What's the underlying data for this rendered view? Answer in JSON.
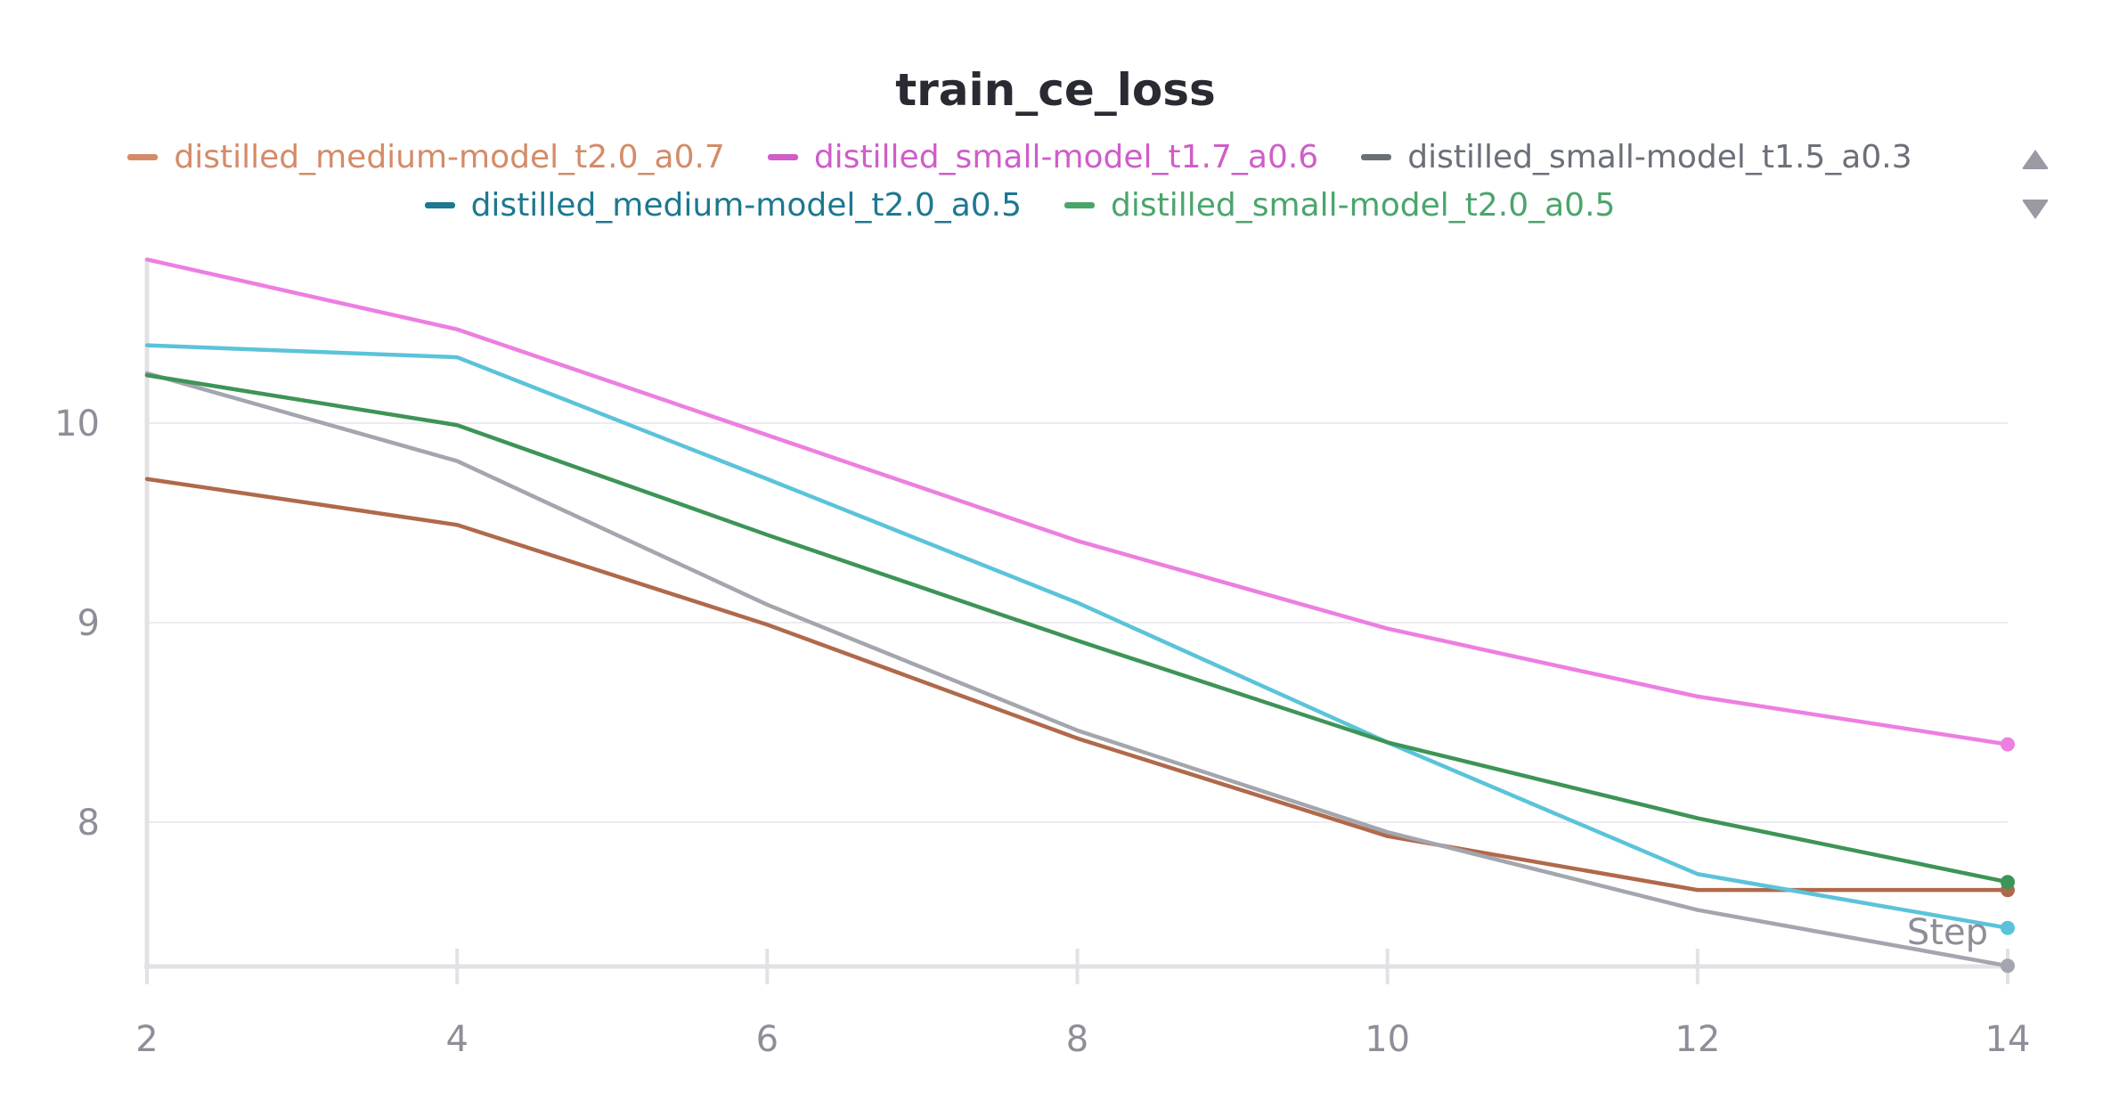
{
  "chart_data": {
    "type": "line",
    "title": "train_ce_loss",
    "xlabel": "Step",
    "ylabel": "",
    "xlim": [
      2,
      14
    ],
    "ylim": [
      7.28,
      10.82
    ],
    "x_ticks": [
      2,
      4,
      6,
      8,
      10,
      12,
      14
    ],
    "y_ticks": [
      8,
      9,
      10
    ],
    "grid": true,
    "legend_placement": "top",
    "series": [
      {
        "name": "distilled_medium-model_t2.0_a0.7",
        "color": "#b0694a",
        "legend_color": "#d48b68",
        "x": [
          2,
          4,
          6,
          8,
          10,
          12,
          14
        ],
        "y": [
          9.72,
          9.49,
          8.99,
          8.42,
          7.93,
          7.66,
          7.66
        ]
      },
      {
        "name": "distilled_small-model_t1.7_a0.6",
        "color": "#ec7fe0",
        "legend_color": "#d05dc8",
        "x": [
          2,
          4,
          6,
          8,
          10,
          12,
          14
        ],
        "y": [
          10.82,
          10.47,
          9.94,
          9.41,
          8.97,
          8.63,
          8.39
        ]
      },
      {
        "name": "distilled_small-model_t1.5_a0.3",
        "color": "#a3a6ae",
        "legend_color": "#6b6f78",
        "x": [
          2,
          4,
          6,
          8,
          10,
          12,
          14
        ],
        "y": [
          10.25,
          9.81,
          9.09,
          8.46,
          7.95,
          7.56,
          7.28
        ]
      },
      {
        "name": "distilled_medium-model_t2.0_a0.5",
        "color": "#5bc3d9",
        "legend_color": "#1d7890",
        "x": [
          2,
          4,
          6,
          8,
          10,
          12,
          14
        ],
        "y": [
          10.39,
          10.33,
          9.72,
          9.1,
          8.4,
          7.74,
          7.47
        ]
      },
      {
        "name": "distilled_small-model_t2.0_a0.5",
        "color": "#3d9457",
        "legend_color": "#4aa56b",
        "x": [
          2,
          4,
          6,
          8,
          10,
          12,
          14
        ],
        "y": [
          10.24,
          9.99,
          9.44,
          8.91,
          8.4,
          8.02,
          7.7
        ]
      }
    ]
  }
}
